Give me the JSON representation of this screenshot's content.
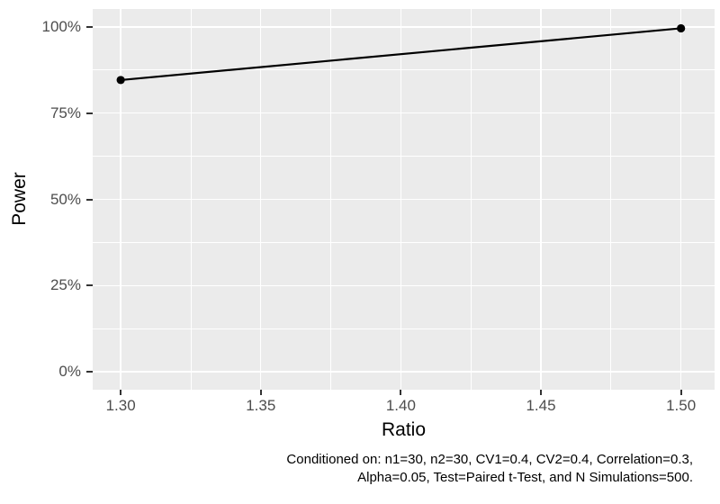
{
  "chart_data": {
    "type": "line",
    "title": "",
    "xlabel": "Ratio",
    "ylabel": "Power",
    "x": [
      1.3,
      1.5
    ],
    "series": [
      {
        "name": "Power",
        "values_percent": [
          84.6,
          99.6
        ]
      }
    ],
    "x_tick_values": [
      1.3,
      1.35,
      1.4,
      1.45,
      1.5
    ],
    "x_tick_labels": [
      "1.30",
      "1.35",
      "1.40",
      "1.45",
      "1.50"
    ],
    "y_tick_values": [
      0,
      25,
      50,
      75,
      100
    ],
    "y_tick_labels": [
      "0%",
      "25%",
      "50%",
      "75%",
      "100%"
    ],
    "x_minor": [
      1.325,
      1.375,
      1.425,
      1.475
    ],
    "y_minor": [
      12.5,
      37.5,
      62.5,
      87.5
    ],
    "xlim": [
      1.29,
      1.512
    ],
    "ylim_percent": [
      -5.2,
      105.2
    ],
    "grid": "white major and minor gridlines on grey panel",
    "legend": "none"
  },
  "caption": {
    "line1": "Conditioned on: n1=30, n2=30, CV1=0.4, CV2=0.4, Correlation=0.3,",
    "line2": "Alpha=0.05, Test=Paired t-Test, and N Simulations=500."
  },
  "colors": {
    "panel_bg": "#EBEBEB",
    "gridline": "#FFFFFF",
    "axis_text": "#4D4D4D",
    "tick_mark": "#333333",
    "series_line": "#000000",
    "series_point": "#000000",
    "title_text": "#000000",
    "figure_bg": "#FFFFFF"
  }
}
